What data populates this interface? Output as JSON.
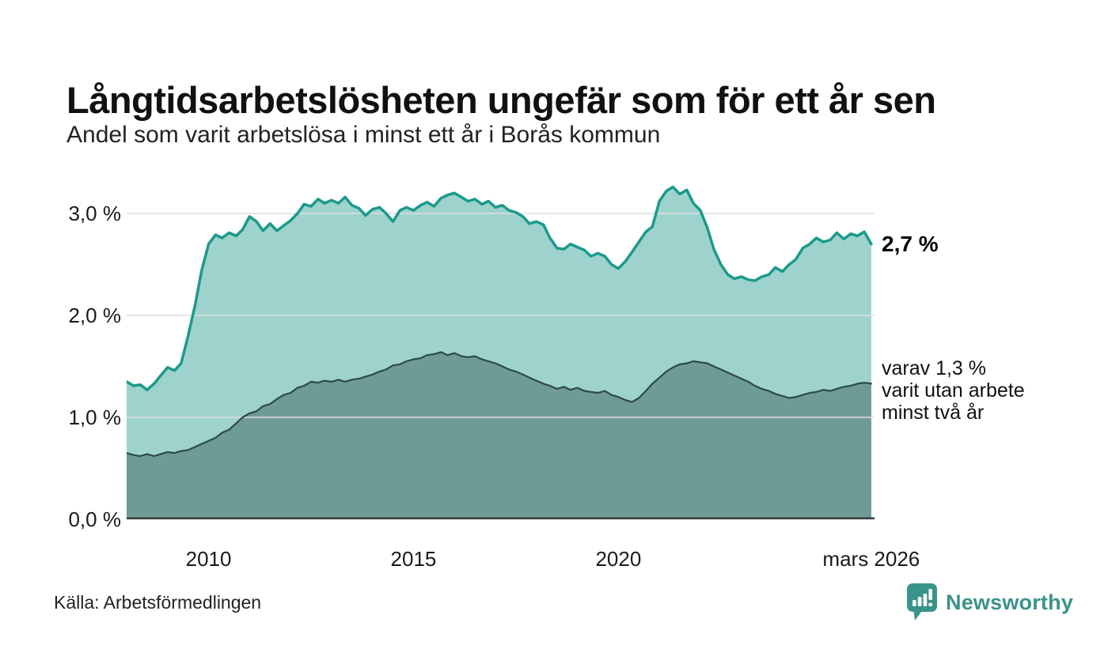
{
  "header": {
    "title": "Långtidsarbetslösheten ungefär som för ett år sen",
    "subtitle": "Andel som varit arbetslösa i minst ett år i Borås kommun"
  },
  "footer": {
    "source": "Källa: Arbetsförmedlingen",
    "brand": "Newsworthy"
  },
  "colors": {
    "accent": "#3a938a",
    "grid": "#dedede",
    "axis": "#3d3d3d",
    "series1_line": "#1b9a8c",
    "series1_fill": "#9ed3cd",
    "series2_line": "#2d4a46",
    "series2_fill": "#6f9b96"
  },
  "chart_data": {
    "type": "area",
    "title": "Långtidsarbetslösheten ungefär som för ett år sen",
    "subtitle": "Andel som varit arbetslösa i minst ett år i Borås kommun",
    "unit": "%",
    "grid": true,
    "x_range": [
      2008,
      2026.25
    ],
    "y_range": [
      0,
      3.35
    ],
    "x_ticks": [
      {
        "x": 2010,
        "label": "2010"
      },
      {
        "x": 2015,
        "label": "2015"
      },
      {
        "x": 2020,
        "label": "2020"
      },
      {
        "x": 2026.17,
        "label": "mars 2026"
      }
    ],
    "y_ticks": [
      {
        "value": 0,
        "label": "0,0 %"
      },
      {
        "value": 1,
        "label": "1,0 %"
      },
      {
        "value": 2,
        "label": "2,0 %"
      },
      {
        "value": 3,
        "label": "3,0 %"
      }
    ],
    "series": [
      {
        "name": "Arbetslösa minst ett år",
        "line_color": "#1b9a8c",
        "fill_color": "#9ed3cd",
        "stroke_width": 3.5,
        "points": [
          [
            2008,
            1.35
          ],
          [
            2008.17,
            1.31
          ],
          [
            2008.33,
            1.32
          ],
          [
            2008.5,
            1.27
          ],
          [
            2008.67,
            1.33
          ],
          [
            2008.83,
            1.41
          ],
          [
            2009,
            1.49
          ],
          [
            2009.17,
            1.46
          ],
          [
            2009.33,
            1.53
          ],
          [
            2009.5,
            1.8
          ],
          [
            2009.67,
            2.1
          ],
          [
            2009.83,
            2.44
          ],
          [
            2010,
            2.7
          ],
          [
            2010.17,
            2.79
          ],
          [
            2010.33,
            2.76
          ],
          [
            2010.5,
            2.81
          ],
          [
            2010.67,
            2.78
          ],
          [
            2010.83,
            2.84
          ],
          [
            2011,
            2.97
          ],
          [
            2011.17,
            2.92
          ],
          [
            2011.33,
            2.83
          ],
          [
            2011.5,
            2.9
          ],
          [
            2011.67,
            2.83
          ],
          [
            2011.83,
            2.88
          ],
          [
            2012,
            2.93
          ],
          [
            2012.17,
            3.0
          ],
          [
            2012.33,
            3.09
          ],
          [
            2012.5,
            3.07
          ],
          [
            2012.67,
            3.14
          ],
          [
            2012.83,
            3.1
          ],
          [
            2013,
            3.13
          ],
          [
            2013.17,
            3.1
          ],
          [
            2013.33,
            3.16
          ],
          [
            2013.5,
            3.08
          ],
          [
            2013.67,
            3.05
          ],
          [
            2013.83,
            2.98
          ],
          [
            2014,
            3.04
          ],
          [
            2014.17,
            3.06
          ],
          [
            2014.33,
            3.0
          ],
          [
            2014.5,
            2.92
          ],
          [
            2014.67,
            3.03
          ],
          [
            2014.83,
            3.06
          ],
          [
            2015,
            3.03
          ],
          [
            2015.17,
            3.08
          ],
          [
            2015.33,
            3.11
          ],
          [
            2015.5,
            3.07
          ],
          [
            2015.67,
            3.15
          ],
          [
            2015.83,
            3.18
          ],
          [
            2016,
            3.2
          ],
          [
            2016.17,
            3.16
          ],
          [
            2016.33,
            3.12
          ],
          [
            2016.5,
            3.14
          ],
          [
            2016.67,
            3.09
          ],
          [
            2016.83,
            3.12
          ],
          [
            2017,
            3.06
          ],
          [
            2017.17,
            3.08
          ],
          [
            2017.33,
            3.03
          ],
          [
            2017.5,
            3.01
          ],
          [
            2017.67,
            2.97
          ],
          [
            2017.83,
            2.9
          ],
          [
            2018,
            2.92
          ],
          [
            2018.17,
            2.89
          ],
          [
            2018.33,
            2.76
          ],
          [
            2018.5,
            2.66
          ],
          [
            2018.67,
            2.65
          ],
          [
            2018.83,
            2.7
          ],
          [
            2019,
            2.67
          ],
          [
            2019.17,
            2.64
          ],
          [
            2019.33,
            2.58
          ],
          [
            2019.5,
            2.61
          ],
          [
            2019.67,
            2.58
          ],
          [
            2019.83,
            2.5
          ],
          [
            2020,
            2.46
          ],
          [
            2020.17,
            2.53
          ],
          [
            2020.33,
            2.62
          ],
          [
            2020.5,
            2.72
          ],
          [
            2020.67,
            2.82
          ],
          [
            2020.83,
            2.87
          ],
          [
            2021,
            3.12
          ],
          [
            2021.17,
            3.22
          ],
          [
            2021.33,
            3.26
          ],
          [
            2021.5,
            3.19
          ],
          [
            2021.67,
            3.23
          ],
          [
            2021.83,
            3.1
          ],
          [
            2022,
            3.03
          ],
          [
            2022.17,
            2.86
          ],
          [
            2022.33,
            2.65
          ],
          [
            2022.5,
            2.5
          ],
          [
            2022.67,
            2.4
          ],
          [
            2022.83,
            2.36
          ],
          [
            2023,
            2.38
          ],
          [
            2023.17,
            2.35
          ],
          [
            2023.33,
            2.34
          ],
          [
            2023.5,
            2.38
          ],
          [
            2023.67,
            2.4
          ],
          [
            2023.83,
            2.47
          ],
          [
            2024,
            2.43
          ],
          [
            2024.17,
            2.5
          ],
          [
            2024.33,
            2.55
          ],
          [
            2024.5,
            2.66
          ],
          [
            2024.67,
            2.7
          ],
          [
            2024.83,
            2.76
          ],
          [
            2025,
            2.72
          ],
          [
            2025.17,
            2.74
          ],
          [
            2025.33,
            2.81
          ],
          [
            2025.5,
            2.75
          ],
          [
            2025.67,
            2.8
          ],
          [
            2025.83,
            2.78
          ],
          [
            2026,
            2.82
          ],
          [
            2026.17,
            2.7
          ]
        ]
      },
      {
        "name": "Varav utan arbete minst två år",
        "line_color": "#2d4a46",
        "fill_color": "#6f9b96",
        "stroke_width": 2.2,
        "points": [
          [
            2008,
            0.65
          ],
          [
            2008.17,
            0.63
          ],
          [
            2008.33,
            0.62
          ],
          [
            2008.5,
            0.64
          ],
          [
            2008.67,
            0.62
          ],
          [
            2008.83,
            0.64
          ],
          [
            2009,
            0.66
          ],
          [
            2009.17,
            0.65
          ],
          [
            2009.33,
            0.67
          ],
          [
            2009.5,
            0.68
          ],
          [
            2009.67,
            0.71
          ],
          [
            2009.83,
            0.74
          ],
          [
            2010,
            0.77
          ],
          [
            2010.17,
            0.8
          ],
          [
            2010.33,
            0.85
          ],
          [
            2010.5,
            0.88
          ],
          [
            2010.67,
            0.94
          ],
          [
            2010.83,
            1.0
          ],
          [
            2011,
            1.04
          ],
          [
            2011.17,
            1.06
          ],
          [
            2011.33,
            1.11
          ],
          [
            2011.5,
            1.13
          ],
          [
            2011.67,
            1.18
          ],
          [
            2011.83,
            1.22
          ],
          [
            2012,
            1.24
          ],
          [
            2012.17,
            1.29
          ],
          [
            2012.33,
            1.31
          ],
          [
            2012.5,
            1.35
          ],
          [
            2012.67,
            1.34
          ],
          [
            2012.83,
            1.36
          ],
          [
            2013,
            1.35
          ],
          [
            2013.17,
            1.37
          ],
          [
            2013.33,
            1.35
          ],
          [
            2013.5,
            1.37
          ],
          [
            2013.67,
            1.38
          ],
          [
            2013.83,
            1.4
          ],
          [
            2014,
            1.42
          ],
          [
            2014.17,
            1.45
          ],
          [
            2014.33,
            1.47
          ],
          [
            2014.5,
            1.51
          ],
          [
            2014.67,
            1.52
          ],
          [
            2014.83,
            1.55
          ],
          [
            2015,
            1.57
          ],
          [
            2015.17,
            1.58
          ],
          [
            2015.33,
            1.61
          ],
          [
            2015.5,
            1.62
          ],
          [
            2015.67,
            1.64
          ],
          [
            2015.83,
            1.61
          ],
          [
            2016,
            1.63
          ],
          [
            2016.17,
            1.6
          ],
          [
            2016.33,
            1.59
          ],
          [
            2016.5,
            1.6
          ],
          [
            2016.67,
            1.57
          ],
          [
            2016.83,
            1.55
          ],
          [
            2017,
            1.53
          ],
          [
            2017.17,
            1.5
          ],
          [
            2017.33,
            1.47
          ],
          [
            2017.5,
            1.45
          ],
          [
            2017.67,
            1.42
          ],
          [
            2017.83,
            1.39
          ],
          [
            2018,
            1.36
          ],
          [
            2018.17,
            1.33
          ],
          [
            2018.33,
            1.31
          ],
          [
            2018.5,
            1.28
          ],
          [
            2018.67,
            1.3
          ],
          [
            2018.83,
            1.27
          ],
          [
            2019,
            1.29
          ],
          [
            2019.17,
            1.26
          ],
          [
            2019.33,
            1.25
          ],
          [
            2019.5,
            1.24
          ],
          [
            2019.67,
            1.26
          ],
          [
            2019.83,
            1.22
          ],
          [
            2020,
            1.2
          ],
          [
            2020.17,
            1.17
          ],
          [
            2020.33,
            1.15
          ],
          [
            2020.5,
            1.19
          ],
          [
            2020.67,
            1.26
          ],
          [
            2020.83,
            1.33
          ],
          [
            2021,
            1.39
          ],
          [
            2021.17,
            1.45
          ],
          [
            2021.33,
            1.49
          ],
          [
            2021.5,
            1.52
          ],
          [
            2021.67,
            1.53
          ],
          [
            2021.83,
            1.55
          ],
          [
            2022,
            1.54
          ],
          [
            2022.17,
            1.53
          ],
          [
            2022.33,
            1.5
          ],
          [
            2022.5,
            1.47
          ],
          [
            2022.67,
            1.44
          ],
          [
            2022.83,
            1.41
          ],
          [
            2023,
            1.38
          ],
          [
            2023.17,
            1.35
          ],
          [
            2023.33,
            1.31
          ],
          [
            2023.5,
            1.28
          ],
          [
            2023.67,
            1.26
          ],
          [
            2023.83,
            1.23
          ],
          [
            2024,
            1.21
          ],
          [
            2024.17,
            1.19
          ],
          [
            2024.33,
            1.2
          ],
          [
            2024.5,
            1.22
          ],
          [
            2024.67,
            1.24
          ],
          [
            2024.83,
            1.25
          ],
          [
            2025,
            1.27
          ],
          [
            2025.17,
            1.26
          ],
          [
            2025.33,
            1.28
          ],
          [
            2025.5,
            1.3
          ],
          [
            2025.67,
            1.31
          ],
          [
            2025.83,
            1.33
          ],
          [
            2026,
            1.34
          ],
          [
            2026.17,
            1.33
          ]
        ]
      }
    ],
    "annotations": {
      "latest_total": {
        "value": 2.7,
        "label": "2,7 %"
      },
      "two_years": {
        "value": 1.3,
        "lines": [
          "varav 1,3 %",
          "varit utan arbete",
          "minst två år"
        ]
      }
    }
  }
}
